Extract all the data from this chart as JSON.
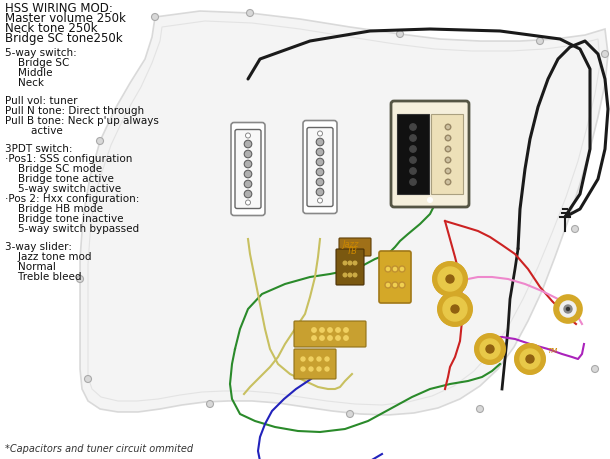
{
  "bg_color": "#ffffff",
  "pickguard_fill": "#f0f0f0",
  "pickguard_outline": "#cccccc",
  "inner_outline": "#d8d8d8",
  "title_lines": [
    "HSS WIRING MOD:",
    "Master volume 250k",
    "Neck tone 250k",
    "Bridge SC tone250k"
  ],
  "s1_header": "5-way switch:",
  "s1_items": [
    "    Bridge SC",
    "    Middle",
    "    Neck"
  ],
  "s2_lines": [
    "Pull vol: tuner",
    "Pull N tone: Direct through",
    "Pull B tone: Neck p'up always",
    "        active"
  ],
  "s3_header": "3PDT switch:",
  "s3_items": [
    "·Pos1: SSS configuration",
    "    Bridge SC mode",
    "    Bridge tone active",
    "    5-way switch active",
    "·Pos 2: Hxx configuration:",
    "    Bridge HB mode",
    "    Bridge tone inactive",
    "    5-way switch bypassed"
  ],
  "s4_header": "3-way slider:",
  "s4_items": [
    "    Jazz tone mod",
    "    Normal",
    "    Treble bleed"
  ],
  "footnote": "*Capacitors and tuner circuit ommited",
  "wire_black": "#1a1a1a",
  "wire_green": "#2a8a2a",
  "wire_red": "#cc2222",
  "wire_yellow": "#c8c060",
  "wire_blue": "#2222bb",
  "wire_purple": "#aa22bb",
  "wire_pink": "#ee88cc",
  "wire_orange": "#dd7700",
  "jazz_color": "#cc8800",
  "tb_color": "#cc8800",
  "tm_color": "#cc8800",
  "fs_title": 8.5,
  "fs_body": 7.5,
  "fs_foot": 7.0,
  "fs_label": 6.0
}
